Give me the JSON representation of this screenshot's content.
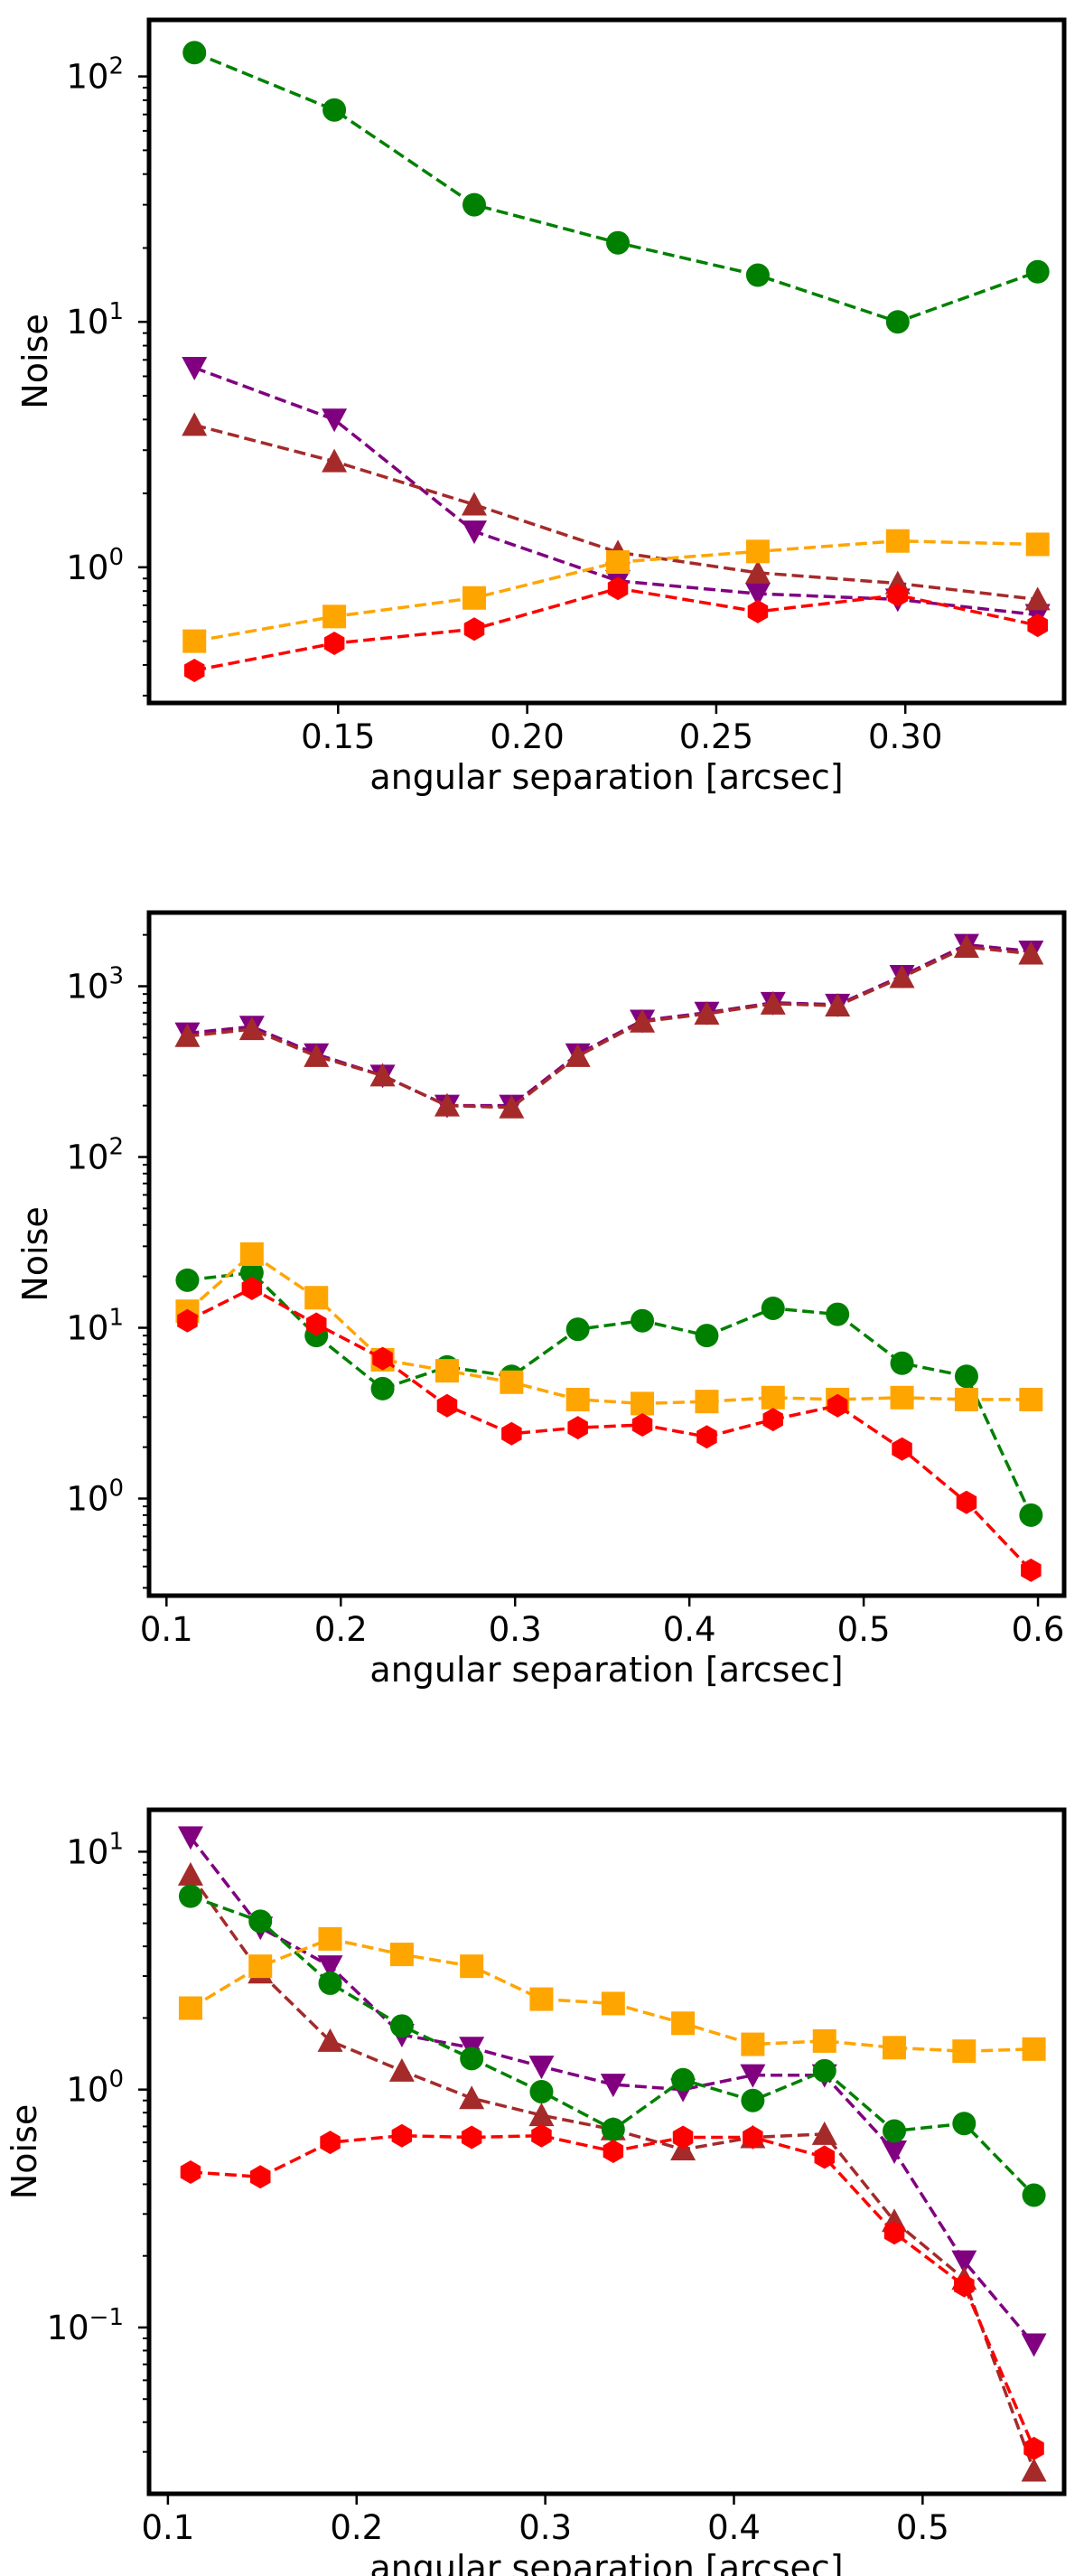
{
  "chart_data": [
    {
      "type": "line",
      "xlabel": "angular separation [arcsec]",
      "ylabel": "Noise",
      "yscale": "log",
      "xlim": [
        0.1,
        0.342
      ],
      "ylim": [
        0.28,
        170
      ],
      "xticks": [
        {
          "value": 0.15,
          "label": "0.15"
        },
        {
          "value": 0.2,
          "label": "0.20"
        },
        {
          "value": 0.25,
          "label": "0.25"
        },
        {
          "value": 0.3,
          "label": "0.30"
        }
      ],
      "yticks": [
        {
          "value": 1,
          "base": "10",
          "exp": "0"
        },
        {
          "value": 10,
          "base": "10",
          "exp": "1"
        },
        {
          "value": 100,
          "base": "10",
          "exp": "2"
        }
      ],
      "x": [
        0.112,
        0.149,
        0.186,
        0.224,
        0.261,
        0.298,
        0.335
      ],
      "series": [
        {
          "name": "green",
          "color": "#008000",
          "marker": "circle",
          "values": [
            125,
            73,
            30,
            21,
            15.5,
            10,
            16
          ]
        },
        {
          "name": "purple",
          "color": "#800080",
          "marker": "triangle-down",
          "values": [
            6.5,
            4.0,
            1.4,
            0.88,
            0.78,
            0.74,
            0.64
          ]
        },
        {
          "name": "brown",
          "color": "#a52a2a",
          "marker": "triangle-up",
          "values": [
            3.8,
            2.7,
            1.8,
            1.15,
            0.95,
            0.86,
            0.74
          ]
        },
        {
          "name": "orange",
          "color": "#ffa500",
          "marker": "square",
          "values": [
            0.5,
            0.63,
            0.75,
            1.05,
            1.16,
            1.28,
            1.24
          ]
        },
        {
          "name": "red",
          "color": "#ff0000",
          "marker": "hexagon",
          "values": [
            0.38,
            0.49,
            0.56,
            0.82,
            0.66,
            0.77,
            0.58
          ]
        }
      ]
    },
    {
      "type": "line",
      "xlabel": "angular separation [arcsec]",
      "ylabel": "Noise",
      "yscale": "log",
      "xlim": [
        0.09,
        0.615
      ],
      "ylim": [
        0.27,
        2700
      ],
      "xticks": [
        {
          "value": 0.1,
          "label": "0.1"
        },
        {
          "value": 0.2,
          "label": "0.2"
        },
        {
          "value": 0.3,
          "label": "0.3"
        },
        {
          "value": 0.4,
          "label": "0.4"
        },
        {
          "value": 0.5,
          "label": "0.5"
        },
        {
          "value": 0.6,
          "label": "0.6"
        }
      ],
      "yticks": [
        {
          "value": 1,
          "base": "10",
          "exp": "0"
        },
        {
          "value": 10,
          "base": "10",
          "exp": "1"
        },
        {
          "value": 100,
          "base": "10",
          "exp": "2"
        },
        {
          "value": 1000,
          "base": "10",
          "exp": "3"
        }
      ],
      "x": [
        0.112,
        0.149,
        0.186,
        0.224,
        0.261,
        0.298,
        0.336,
        0.373,
        0.41,
        0.448,
        0.485,
        0.522,
        0.559,
        0.596
      ],
      "series": [
        {
          "name": "purple",
          "color": "#800080",
          "marker": "triangle-down",
          "values": [
            530,
            580,
            400,
            300,
            200,
            200,
            400,
            630,
            700,
            800,
            780,
            1150,
            1750,
            1600
          ]
        },
        {
          "name": "brown",
          "color": "#a52a2a",
          "marker": "triangle-up",
          "values": [
            510,
            560,
            390,
            300,
            200,
            195,
            390,
            620,
            690,
            790,
            770,
            1130,
            1700,
            1550
          ]
        },
        {
          "name": "green",
          "color": "#008000",
          "marker": "circle",
          "values": [
            19,
            21,
            9,
            4.4,
            5.9,
            5.2,
            9.8,
            11,
            9,
            13,
            12,
            6.2,
            5.2,
            0.8
          ]
        },
        {
          "name": "orange",
          "color": "#ffa500",
          "marker": "square",
          "values": [
            12.5,
            27,
            15,
            6.5,
            5.6,
            4.8,
            3.8,
            3.6,
            3.7,
            3.9,
            3.8,
            3.9,
            3.8,
            3.8
          ]
        },
        {
          "name": "red",
          "color": "#ff0000",
          "marker": "hexagon",
          "values": [
            11,
            17,
            10.5,
            6.6,
            3.5,
            2.4,
            2.6,
            2.7,
            2.3,
            2.9,
            3.5,
            1.95,
            0.95,
            0.38
          ]
        }
      ]
    },
    {
      "type": "line",
      "xlabel": "angular separation [arcsec]",
      "ylabel": "Noise",
      "yscale": "log",
      "xlim": [
        0.09,
        0.575
      ],
      "ylim": [
        0.02,
        15
      ],
      "xticks": [
        {
          "value": 0.1,
          "label": "0.1"
        },
        {
          "value": 0.2,
          "label": "0.2"
        },
        {
          "value": 0.3,
          "label": "0.3"
        },
        {
          "value": 0.4,
          "label": "0.4"
        },
        {
          "value": 0.5,
          "label": "0.5"
        }
      ],
      "yticks": [
        {
          "value": 0.1,
          "base": "10",
          "exp": "−1"
        },
        {
          "value": 1,
          "base": "10",
          "exp": "0"
        },
        {
          "value": 10,
          "base": "10",
          "exp": "1"
        }
      ],
      "x": [
        0.112,
        0.149,
        0.186,
        0.224,
        0.261,
        0.298,
        0.336,
        0.373,
        0.41,
        0.448,
        0.485,
        0.522,
        0.559
      ],
      "series": [
        {
          "name": "purple",
          "color": "#800080",
          "marker": "triangle-down",
          "values": [
            11.5,
            4.8,
            3.3,
            1.7,
            1.5,
            1.25,
            1.05,
            1.0,
            1.15,
            1.15,
            0.55,
            0.19,
            0.085
          ]
        },
        {
          "name": "brown",
          "color": "#a52a2a",
          "marker": "triangle-up",
          "values": [
            8.0,
            3.1,
            1.6,
            1.2,
            0.92,
            0.78,
            0.68,
            0.56,
            0.63,
            0.65,
            0.28,
            0.16,
            0.025
          ]
        },
        {
          "name": "green",
          "color": "#008000",
          "marker": "circle",
          "values": [
            6.5,
            5.1,
            2.8,
            1.85,
            1.35,
            0.98,
            0.68,
            1.1,
            0.9,
            1.2,
            0.67,
            0.72,
            0.36
          ]
        },
        {
          "name": "orange",
          "color": "#ffa500",
          "marker": "square",
          "values": [
            2.2,
            3.3,
            4.3,
            3.7,
            3.3,
            2.4,
            2.3,
            1.9,
            1.55,
            1.6,
            1.5,
            1.45,
            1.48
          ]
        },
        {
          "name": "red",
          "color": "#ff0000",
          "marker": "hexagon",
          "values": [
            0.45,
            0.43,
            0.6,
            0.64,
            0.63,
            0.64,
            0.55,
            0.63,
            0.63,
            0.52,
            0.25,
            0.15,
            0.031
          ]
        }
      ]
    }
  ]
}
